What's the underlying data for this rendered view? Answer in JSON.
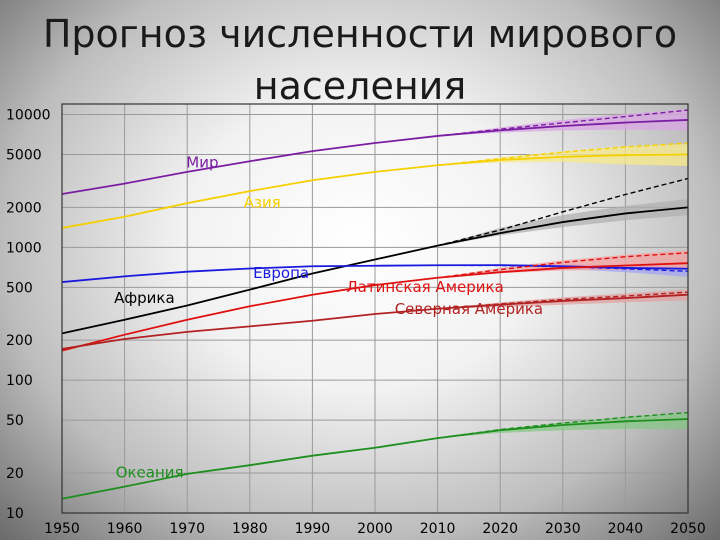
{
  "slide": {
    "title_line1": "Прогноз численности мирового",
    "title_line2": "населения"
  },
  "chart_data": {
    "type": "line",
    "yscale": "log",
    "ylim": [
      10,
      12000
    ],
    "xlim": [
      1950,
      2050
    ],
    "grid": true,
    "y_ticks": [
      10,
      20,
      50,
      100,
      200,
      500,
      1000,
      2000,
      5000,
      10000
    ],
    "x_ticks": [
      1950,
      1960,
      1970,
      1980,
      1990,
      2000,
      2010,
      2020,
      2030,
      2040,
      2050
    ],
    "x": [
      1950,
      1960,
      1970,
      1980,
      1990,
      2000,
      2010,
      2020,
      2030,
      2040,
      2050
    ],
    "series": [
      {
        "name": "Мир",
        "color": "#7b1fa2",
        "band": "#d9a6e6",
        "values": [
          2520,
          3020,
          3700,
          4450,
          5300,
          6100,
          6900,
          7600,
          8200,
          8700,
          9100
        ],
        "projection": {
          "x": [
            2010,
            2020,
            2030,
            2040,
            2050
          ],
          "values": [
            6900,
            7750,
            8650,
            9650,
            10800
          ]
        },
        "band_upper": [
          6900,
          8000,
          9100,
          10100,
          11000
        ],
        "band_lower": [
          6900,
          7300,
          7600,
          7700,
          7600
        ]
      },
      {
        "name": "Азия",
        "color": "#f5d000",
        "band": "#f7ea8a",
        "values": [
          1400,
          1700,
          2150,
          2650,
          3200,
          3700,
          4150,
          4550,
          4800,
          4950,
          5000
        ],
        "projection": {
          "x": [
            2010,
            2020,
            2030,
            2040,
            2050
          ],
          "values": [
            4150,
            4650,
            5200,
            5700,
            6100
          ]
        },
        "band_upper": [
          4150,
          4750,
          5300,
          5800,
          6000
        ],
        "band_lower": [
          4150,
          4350,
          4400,
          4200,
          4100
        ]
      },
      {
        "name": "Африка",
        "color": "#000000",
        "band": "#b0b0b0",
        "values": [
          225,
          285,
          365,
          480,
          635,
          810,
          1030,
          1280,
          1550,
          1800,
          2000
        ],
        "projection": {
          "x": [
            2010,
            2020,
            2030,
            2040,
            2050
          ],
          "values": [
            1030,
            1350,
            1850,
            2500,
            3300
          ]
        },
        "band_upper": [
          1030,
          1400,
          1750,
          2050,
          2300
        ],
        "band_lower": [
          1030,
          1230,
          1420,
          1600,
          1750
        ]
      },
      {
        "name": "Европа",
        "color": "#1a1adf",
        "band": "#a3a3f0",
        "values": [
          548,
          605,
          656,
          693,
          721,
          727,
          733,
          735,
          720,
          700,
          690
        ],
        "projection": {
          "x": [
            2010,
            2020,
            2030,
            2040,
            2050
          ],
          "values": [
            733,
            730,
            715,
            690,
            660
          ]
        },
        "band_upper": [
          733,
          745,
          745,
          735,
          720
        ],
        "band_lower": [
          733,
          725,
          690,
          650,
          600
        ]
      },
      {
        "name": "Латинская Америка",
        "color": "#e01010",
        "band": "#f4a0a0",
        "values": [
          167,
          220,
          285,
          360,
          440,
          520,
          590,
          650,
          700,
          730,
          760
        ],
        "projection": {
          "x": [
            2010,
            2020,
            2030,
            2040,
            2050
          ],
          "values": [
            590,
            680,
            770,
            850,
            910
          ]
        },
        "band_upper": [
          590,
          700,
          800,
          880,
          950
        ],
        "band_lower": [
          590,
          640,
          670,
          680,
          690
        ]
      },
      {
        "name": "Северная Америка",
        "color": "#b22222",
        "band": "#e2a0a0",
        "values": [
          172,
          204,
          231,
          254,
          280,
          315,
          345,
          370,
          395,
          415,
          440
        ],
        "projection": {
          "x": [
            2010,
            2020,
            2030,
            2040,
            2050
          ],
          "values": [
            345,
            375,
            405,
            430,
            460
          ]
        },
        "band_upper": [
          345,
          385,
          420,
          450,
          480
        ],
        "band_lower": [
          345,
          355,
          370,
          385,
          400
        ]
      },
      {
        "name": "Океания",
        "color": "#1e8e1e",
        "band": "#84c884",
        "values": [
          12.8,
          15.8,
          19.7,
          22.9,
          27,
          31,
          36.6,
          42,
          46,
          49,
          51
        ],
        "projection": {
          "x": [
            2010,
            2020,
            2030,
            2040,
            2050
          ],
          "values": [
            36.6,
            42.5,
            47.5,
            52.5,
            57
          ]
        },
        "band_upper": [
          36.6,
          43,
          48,
          53,
          57
        ],
        "band_lower": [
          36.6,
          40,
          42,
          43,
          43
        ]
      }
    ]
  }
}
